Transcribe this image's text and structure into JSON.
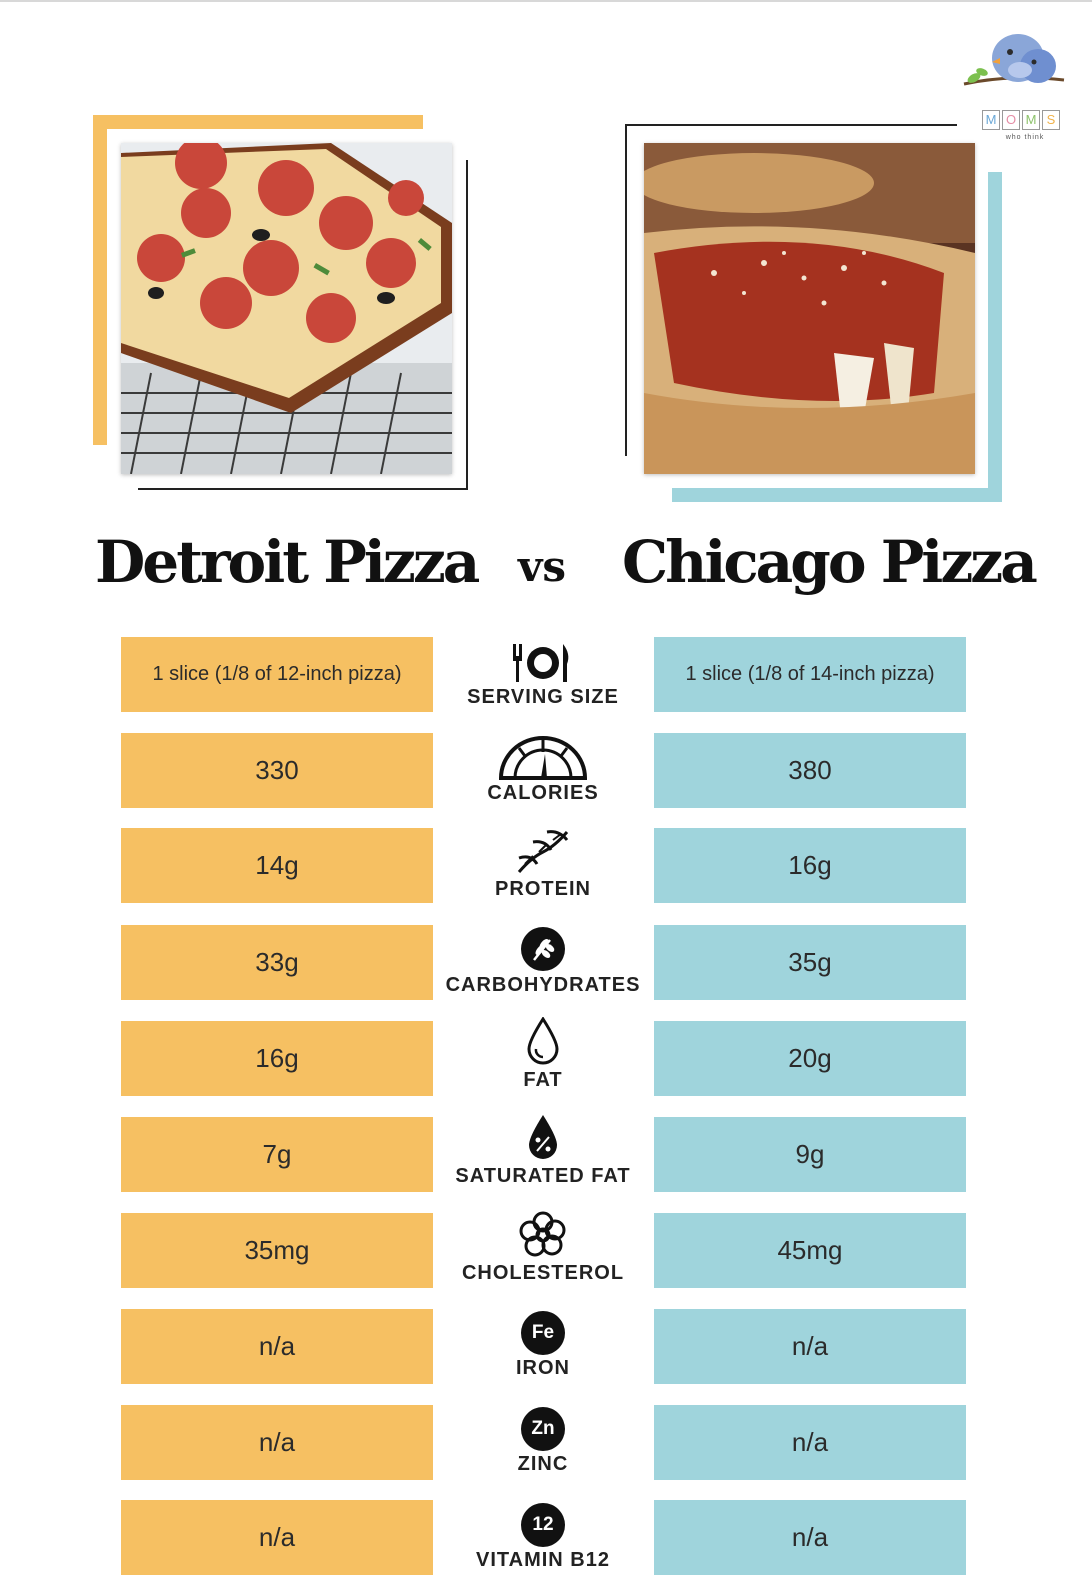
{
  "brand": {
    "logo_letters": [
      "M",
      "O",
      "M",
      "S"
    ],
    "logo_tagline": "who think"
  },
  "images": {
    "left": "Detroit-style rectangular pepperoni pizza on wire rack",
    "right": "Chicago deep dish pizza slice with stretching cheese"
  },
  "header": {
    "left_title": "Detroit Pizza",
    "vs": "vs",
    "right_title": "Chicago Pizza"
  },
  "colors": {
    "detroit": "#f6c062",
    "chicago": "#9fd4dc"
  },
  "rows": [
    {
      "label": "SERVING SIZE",
      "icon": "utensils-icon",
      "detroit": "1 slice (1/8 of 12-inch pizza)",
      "chicago": "1 slice (1/8 of 14-inch pizza)"
    },
    {
      "label": "CALORIES",
      "icon": "gauge-icon",
      "detroit": "330",
      "chicago": "380"
    },
    {
      "label": "PROTEIN",
      "icon": "dna-icon",
      "detroit": "14g",
      "chicago": "16g"
    },
    {
      "label": "CARBOHYDRATES",
      "icon": "grain-icon",
      "detroit": "33g",
      "chicago": "35g"
    },
    {
      "label": "FAT",
      "icon": "droplet-icon",
      "detroit": "16g",
      "chicago": "20g"
    },
    {
      "label": "SATURATED FAT",
      "icon": "percent-drop-icon",
      "detroit": "7g",
      "chicago": "9g"
    },
    {
      "label": "CHOLESTEROL",
      "icon": "cholesterol-icon",
      "detroit": "35mg",
      "chicago": "45mg"
    },
    {
      "label": "IRON",
      "icon": "Fe",
      "detroit": "n/a",
      "chicago": "n/a"
    },
    {
      "label": "ZINC",
      "icon": "Zn",
      "detroit": "n/a",
      "chicago": "n/a"
    },
    {
      "label": "VITAMIN B12",
      "icon": "12",
      "detroit": "n/a",
      "chicago": "n/a"
    }
  ]
}
